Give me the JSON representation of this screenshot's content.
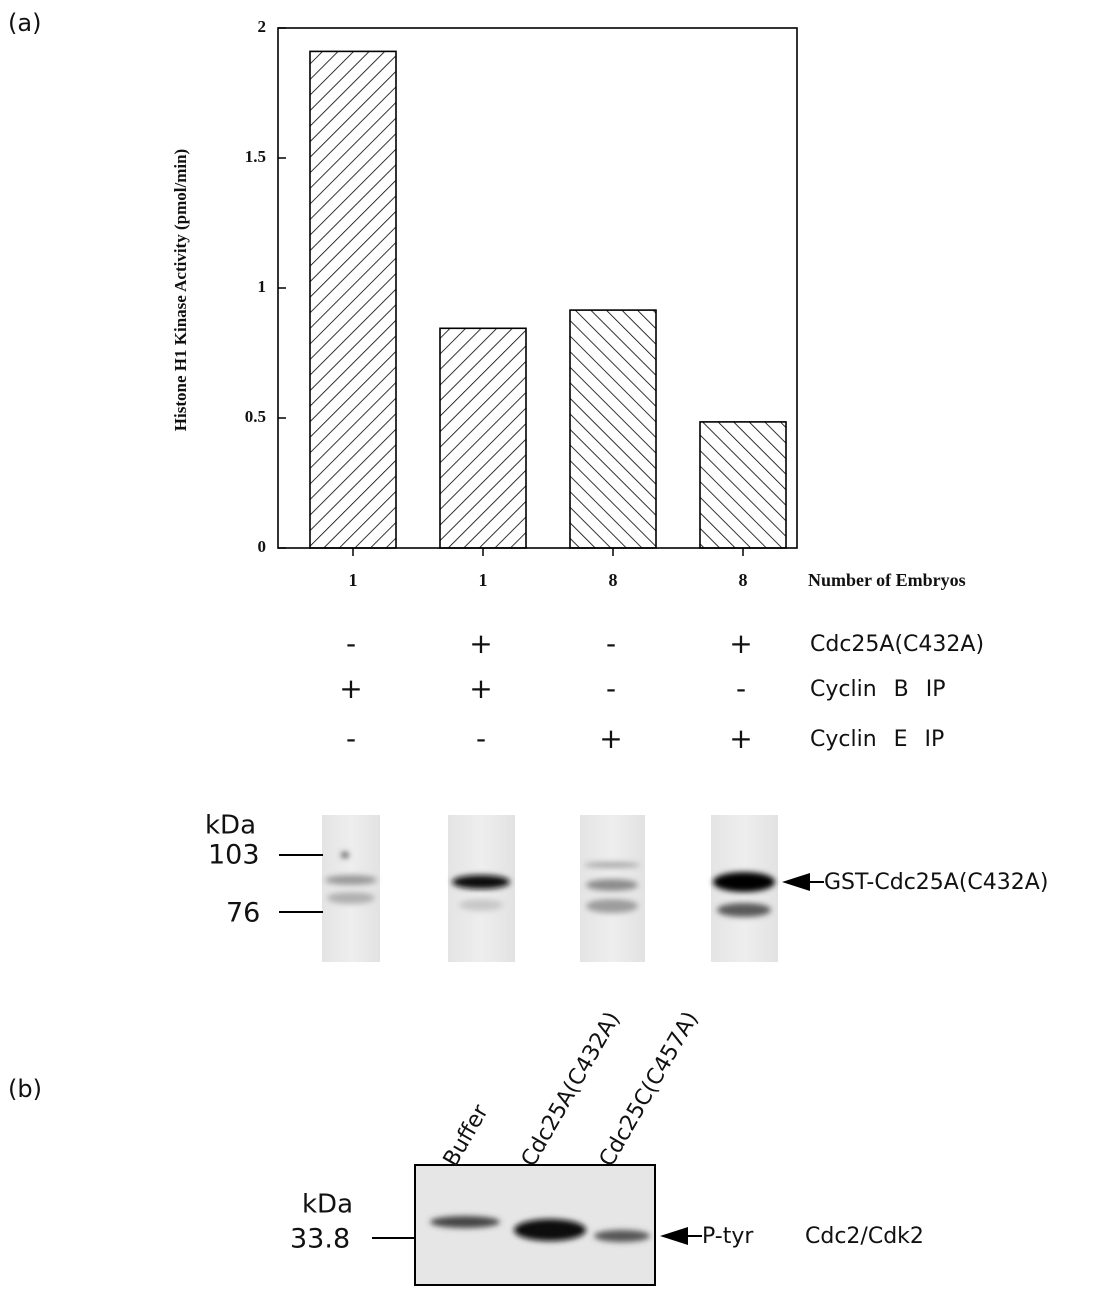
{
  "chart_data": {
    "type": "bar",
    "y_label": "Histone H1 Kinase Activity (pmol/min)",
    "x_label": "Number of Embryos",
    "categories": [
      "1",
      "1",
      "8",
      "8"
    ],
    "values": [
      1.91,
      0.845,
      0.915,
      0.485
    ],
    "hatches": [
      "/",
      "/",
      "\\",
      "\\"
    ],
    "color": "#000000",
    "ylim": [
      0,
      2
    ],
    "yticks": [
      0,
      0.5,
      1,
      1.5,
      2
    ],
    "grid": false
  },
  "panel_a": {
    "label": "(a)",
    "conditions": [
      {
        "label": "Cdc25A(C432A)",
        "signs": [
          "-",
          "+",
          "-",
          "+"
        ]
      },
      {
        "label": "Cyclin B IP",
        "signs": [
          "+",
          "+",
          "-",
          "-"
        ]
      },
      {
        "label": "Cyclin E IP",
        "signs": [
          "-",
          "-",
          "+",
          "+"
        ]
      }
    ],
    "blot": {
      "unit": "kDa",
      "markers": [
        "103",
        "76"
      ],
      "band": "GST-Cdc25A(C432A)"
    }
  },
  "panel_b": {
    "label": "(b)",
    "lanes": [
      "Buffer",
      "Cdc25A(C432A)",
      "Cdc25C(C457A)"
    ],
    "unit": "kDa",
    "marker": "33.8",
    "band": "P-tyr",
    "protein": "Cdc2/Cdk2"
  }
}
